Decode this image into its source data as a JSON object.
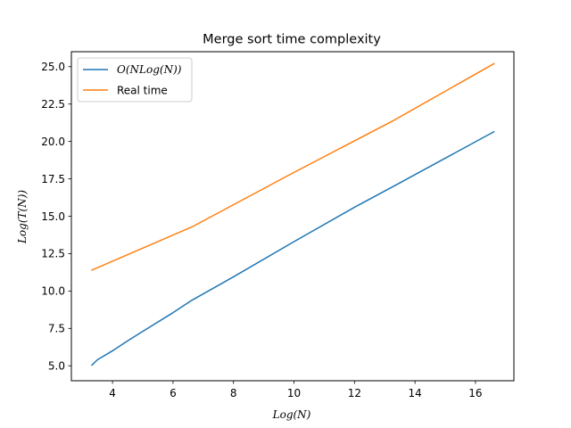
{
  "chart_data": {
    "type": "line",
    "title": "Merge sort time complexity",
    "xlabel": "Log(N)",
    "ylabel": "Log(T(N))",
    "xlim": [
      2.64,
      17.27
    ],
    "ylim": [
      4.0,
      26.0
    ],
    "xticks": [
      4,
      6,
      8,
      10,
      12,
      14,
      16
    ],
    "xtick_labels": [
      "4",
      "6",
      "8",
      "10",
      "12",
      "14",
      "16"
    ],
    "yticks": [
      5.0,
      7.5,
      10.0,
      12.5,
      15.0,
      17.5,
      20.0,
      22.5,
      25.0
    ],
    "ytick_labels": [
      "5.0",
      "7.5",
      "10.0",
      "12.5",
      "15.0",
      "17.5",
      "20.0",
      "22.5",
      "25.0"
    ],
    "grid": false,
    "legend_position": "top-left",
    "series": [
      {
        "name": "O(NLog(N))",
        "color": "#1f77b4",
        "x": [
          3.32,
          3.5,
          4.0,
          4.5,
          5.0,
          6.0,
          6.64,
          8.0,
          10.0,
          12.0,
          13.29,
          16.61
        ],
        "y": [
          5.05,
          5.4,
          6.0,
          6.67,
          7.3,
          8.55,
          9.4,
          10.95,
          13.3,
          15.6,
          17.0,
          20.65
        ]
      },
      {
        "name": "Real time",
        "color": "#ff7f0e",
        "x": [
          3.32,
          6.64,
          9.97,
          13.29,
          16.61
        ],
        "y": [
          11.4,
          14.3,
          17.9,
          21.4,
          25.2
        ]
      }
    ]
  }
}
